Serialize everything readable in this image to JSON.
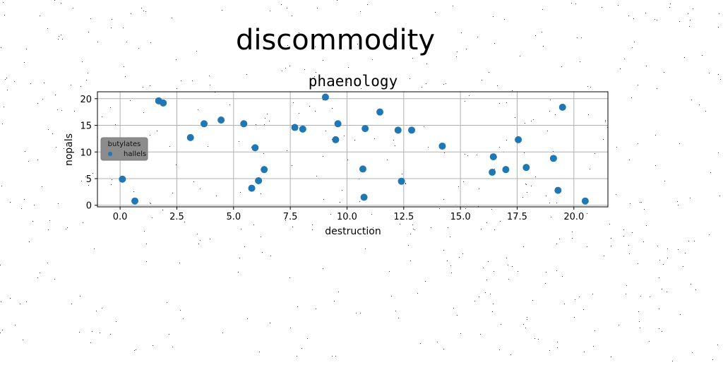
{
  "figure": {
    "suptitle": "discommodity"
  },
  "chart_data": {
    "type": "scatter",
    "title": "phaenology",
    "xlabel": "destruction",
    "ylabel": "nopals",
    "xlim": [
      -1.0,
      21.5
    ],
    "ylim": [
      -0.3,
      21.3
    ],
    "xticks": [
      0.0,
      2.5,
      5.0,
      7.5,
      10.0,
      12.5,
      15.0,
      17.5,
      20.0
    ],
    "xtick_labels": [
      "0.0",
      "2.5",
      "5.0",
      "7.5",
      "10.0",
      "12.5",
      "15.0",
      "17.5",
      "20.0"
    ],
    "yticks": [
      0,
      5,
      10,
      15,
      20
    ],
    "ytick_labels": [
      "0",
      "5",
      "10",
      "15",
      "20"
    ],
    "grid": true,
    "legend": {
      "title": "butylates",
      "placement": "center-left",
      "entries": [
        "hallels"
      ]
    },
    "series": [
      {
        "name": "hallels",
        "color": "#1f77b4",
        "points": [
          {
            "x": 0.1,
            "y": 4.9
          },
          {
            "x": 0.65,
            "y": 0.8
          },
          {
            "x": 1.7,
            "y": 19.6
          },
          {
            "x": 1.9,
            "y": 19.2
          },
          {
            "x": 3.1,
            "y": 12.7
          },
          {
            "x": 3.7,
            "y": 15.3
          },
          {
            "x": 4.45,
            "y": 16.0
          },
          {
            "x": 5.45,
            "y": 15.3
          },
          {
            "x": 5.8,
            "y": 3.2
          },
          {
            "x": 5.95,
            "y": 10.8
          },
          {
            "x": 6.1,
            "y": 4.6
          },
          {
            "x": 6.35,
            "y": 6.7
          },
          {
            "x": 7.7,
            "y": 14.6
          },
          {
            "x": 8.05,
            "y": 14.3
          },
          {
            "x": 9.05,
            "y": 20.3
          },
          {
            "x": 9.5,
            "y": 12.3
          },
          {
            "x": 9.6,
            "y": 15.3
          },
          {
            "x": 10.7,
            "y": 6.8
          },
          {
            "x": 10.75,
            "y": 1.5
          },
          {
            "x": 10.8,
            "y": 14.4
          },
          {
            "x": 11.45,
            "y": 17.5
          },
          {
            "x": 12.25,
            "y": 14.1
          },
          {
            "x": 12.4,
            "y": 4.5
          },
          {
            "x": 12.85,
            "y": 14.1
          },
          {
            "x": 14.2,
            "y": 11.1
          },
          {
            "x": 16.4,
            "y": 6.2
          },
          {
            "x": 16.45,
            "y": 9.1
          },
          {
            "x": 17.0,
            "y": 6.7
          },
          {
            "x": 17.55,
            "y": 12.3
          },
          {
            "x": 17.9,
            "y": 7.1
          },
          {
            "x": 19.1,
            "y": 8.8
          },
          {
            "x": 19.3,
            "y": 2.8
          },
          {
            "x": 19.5,
            "y": 18.4
          },
          {
            "x": 20.5,
            "y": 0.8
          }
        ]
      }
    ]
  }
}
